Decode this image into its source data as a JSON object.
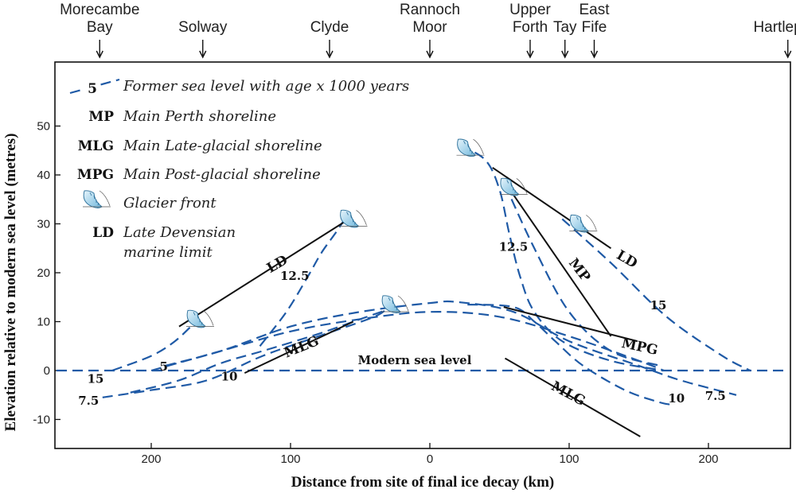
{
  "chart_data": {
    "type": "line",
    "xlabel": "Distance from site of final ice decay (km)",
    "ylabel": "Elevation relative to modern sea level (metres)",
    "xlim": [
      -265,
      265
    ],
    "ylim": [
      -15,
      57
    ],
    "x_ticks": [
      -200,
      -100,
      0,
      100,
      200
    ],
    "x_tick_labels": [
      "200",
      "100",
      "0",
      "100",
      "200"
    ],
    "y_ticks": [
      -10,
      0,
      10,
      20,
      30,
      40,
      50
    ],
    "y_tick_labels": [
      "-10",
      "0",
      "10",
      "20",
      "30",
      "40",
      "50"
    ],
    "sites": [
      {
        "name": "Morecambe Bay",
        "lines": [
          "Morecambe",
          "Bay"
        ],
        "x": -237
      },
      {
        "name": "Solway",
        "lines": [
          "Solway"
        ],
        "x": -163
      },
      {
        "name": "Clyde",
        "lines": [
          "Clyde"
        ],
        "x": -72
      },
      {
        "name": "Rannoch Moor",
        "lines": [
          "Rannoch",
          "Moor"
        ],
        "x": 0
      },
      {
        "name": "Upper Forth",
        "lines": [
          "Upper",
          "Forth"
        ],
        "x": 72
      },
      {
        "name": "Tay",
        "lines": [
          "Tay"
        ],
        "x": 97
      },
      {
        "name": "East Fife",
        "lines": [
          "East",
          "Fife"
        ],
        "x": 118
      },
      {
        "name": "Hartlepool",
        "lines": [
          "Hartlepool"
        ],
        "x": 257
      }
    ],
    "legend": [
      {
        "key": "5",
        "style": "dashed",
        "label": "Former sea level with age x 1000 years"
      },
      {
        "key": "MP",
        "style": "text",
        "label": "Main Perth shoreline"
      },
      {
        "key": "MLG",
        "style": "text",
        "label": "Main Late-glacial shoreline"
      },
      {
        "key": "MPG",
        "style": "text",
        "label": "Main Post-glacial shoreline"
      },
      {
        "key": "",
        "style": "glacier",
        "label": "Glacier front"
      },
      {
        "key": "LD",
        "style": "text",
        "label": "Late Devensian",
        "label2": "marine limit"
      }
    ],
    "modern_sea_level": {
      "label": "Modern sea level",
      "y": 0
    },
    "series": [
      {
        "name": "15",
        "style": "dashed",
        "x": [
          -228,
          -200,
          -183,
          -168
        ],
        "y": [
          0,
          3,
          6,
          10
        ],
        "label_at": [
          -240,
          -2.5
        ]
      },
      {
        "name": "12.5",
        "style": "dashed",
        "x": [
          -122,
          -103,
          -88,
          -78,
          -68,
          -61
        ],
        "y": [
          5,
          12,
          19,
          24,
          28,
          31
        ],
        "label_at": [
          -97,
          18.5
        ]
      },
      {
        "name": "7.5",
        "style": "dashed",
        "x": [
          -235,
          -200,
          -160,
          -120,
          -80,
          -40,
          -30
        ],
        "y": [
          -5.5,
          -4,
          -2,
          3,
          7,
          11,
          13
        ],
        "label_at": [
          -245,
          -7
        ]
      },
      {
        "name": "10",
        "style": "dashed",
        "x": [
          -215,
          -180,
          -150,
          -120,
          -80,
          -50,
          -30
        ],
        "y": [
          -4.5,
          -2,
          1.5,
          4,
          7.5,
          10.5,
          12.5
        ],
        "label_at": [
          -144,
          -2
        ]
      },
      {
        "name": "5",
        "style": "dashed",
        "x": [
          -200,
          -150,
          -100,
          -50,
          0,
          50,
          100,
          150,
          168
        ],
        "y": [
          0,
          4,
          8,
          10.5,
          12,
          11,
          7,
          2,
          0
        ],
        "label_at": [
          -191,
          0
        ]
      },
      {
        "name": "7.5",
        "style": "dashed",
        "x": [
          -190,
          -150,
          -100,
          -50,
          0,
          20,
          60,
          100,
          150,
          180,
          220
        ],
        "y": [
          1,
          4,
          9,
          12,
          13.8,
          14,
          12,
          6,
          1,
          -2,
          -5
        ],
        "label_at": [
          205,
          -6
        ]
      },
      {
        "name": "10",
        "style": "dashed",
        "x": [
          27,
          60,
          75,
          90,
          110,
          140,
          165,
          175
        ],
        "y": [
          13.5,
          13,
          10,
          6,
          1,
          -4,
          -6.5,
          -7
        ],
        "label_at": [
          177,
          -6.5
        ]
      },
      {
        "name": "12.5",
        "style": "dashed",
        "x": [
          22,
          40,
          50,
          57,
          65,
          75,
          95,
          130,
          168
        ],
        "y": [
          46,
          43,
          37,
          28,
          19,
          12,
          6,
          2,
          0
        ],
        "label_at": [
          60,
          24.5
        ]
      },
      {
        "name": "12.5b",
        "style": "dashed",
        "x": [
          54,
          75,
          100,
          130,
          165
        ],
        "y": [
          38,
          25,
          12,
          4,
          1
        ],
        "label_at": null
      },
      {
        "name": "15",
        "style": "dashed",
        "x": [
          95,
          130,
          170,
          210,
          230
        ],
        "y": [
          31,
          22,
          11,
          3,
          0
        ],
        "label_at": [
          164,
          12.5
        ]
      },
      {
        "name": "LD",
        "style": "solid",
        "x": [
          -180,
          -58
        ],
        "y": [
          9,
          31
        ],
        "label_at": [
          -108,
          21
        ],
        "rotate": -30
      },
      {
        "name": "LD",
        "style": "solid",
        "x": [
          45,
          130
        ],
        "y": [
          41.5,
          25
        ],
        "label_at": [
          140,
          22
        ],
        "rotate": 30
      },
      {
        "name": "MP",
        "style": "solid",
        "x": [
          55,
          130
        ],
        "y": [
          38,
          7
        ],
        "label_at": [
          105,
          20
        ],
        "rotate": 52
      },
      {
        "name": "MLG",
        "style": "solid",
        "x": [
          -133,
          -55
        ],
        "y": [
          -0.5,
          10
        ],
        "label_at": [
          -91,
          4
        ],
        "rotate": -22
      },
      {
        "name": "MLG",
        "style": "solid",
        "x": [
          54,
          151
        ],
        "y": [
          2.5,
          -13.5
        ],
        "label_at": [
          98,
          -5.5
        ],
        "rotate": 28
      },
      {
        "name": "MPG",
        "style": "solid",
        "x": [
          53,
          149
        ],
        "y": [
          13,
          6
        ],
        "label_at": [
          150,
          4
        ],
        "rotate": 12
      }
    ],
    "glacier_fronts": [
      {
        "x": -168,
        "y": 10.5
      },
      {
        "x": -58,
        "y": 31
      },
      {
        "x": -28,
        "y": 13.5
      },
      {
        "x": 26,
        "y": 45.5
      },
      {
        "x": 57,
        "y": 37.5
      },
      {
        "x": 107,
        "y": 30
      }
    ]
  }
}
